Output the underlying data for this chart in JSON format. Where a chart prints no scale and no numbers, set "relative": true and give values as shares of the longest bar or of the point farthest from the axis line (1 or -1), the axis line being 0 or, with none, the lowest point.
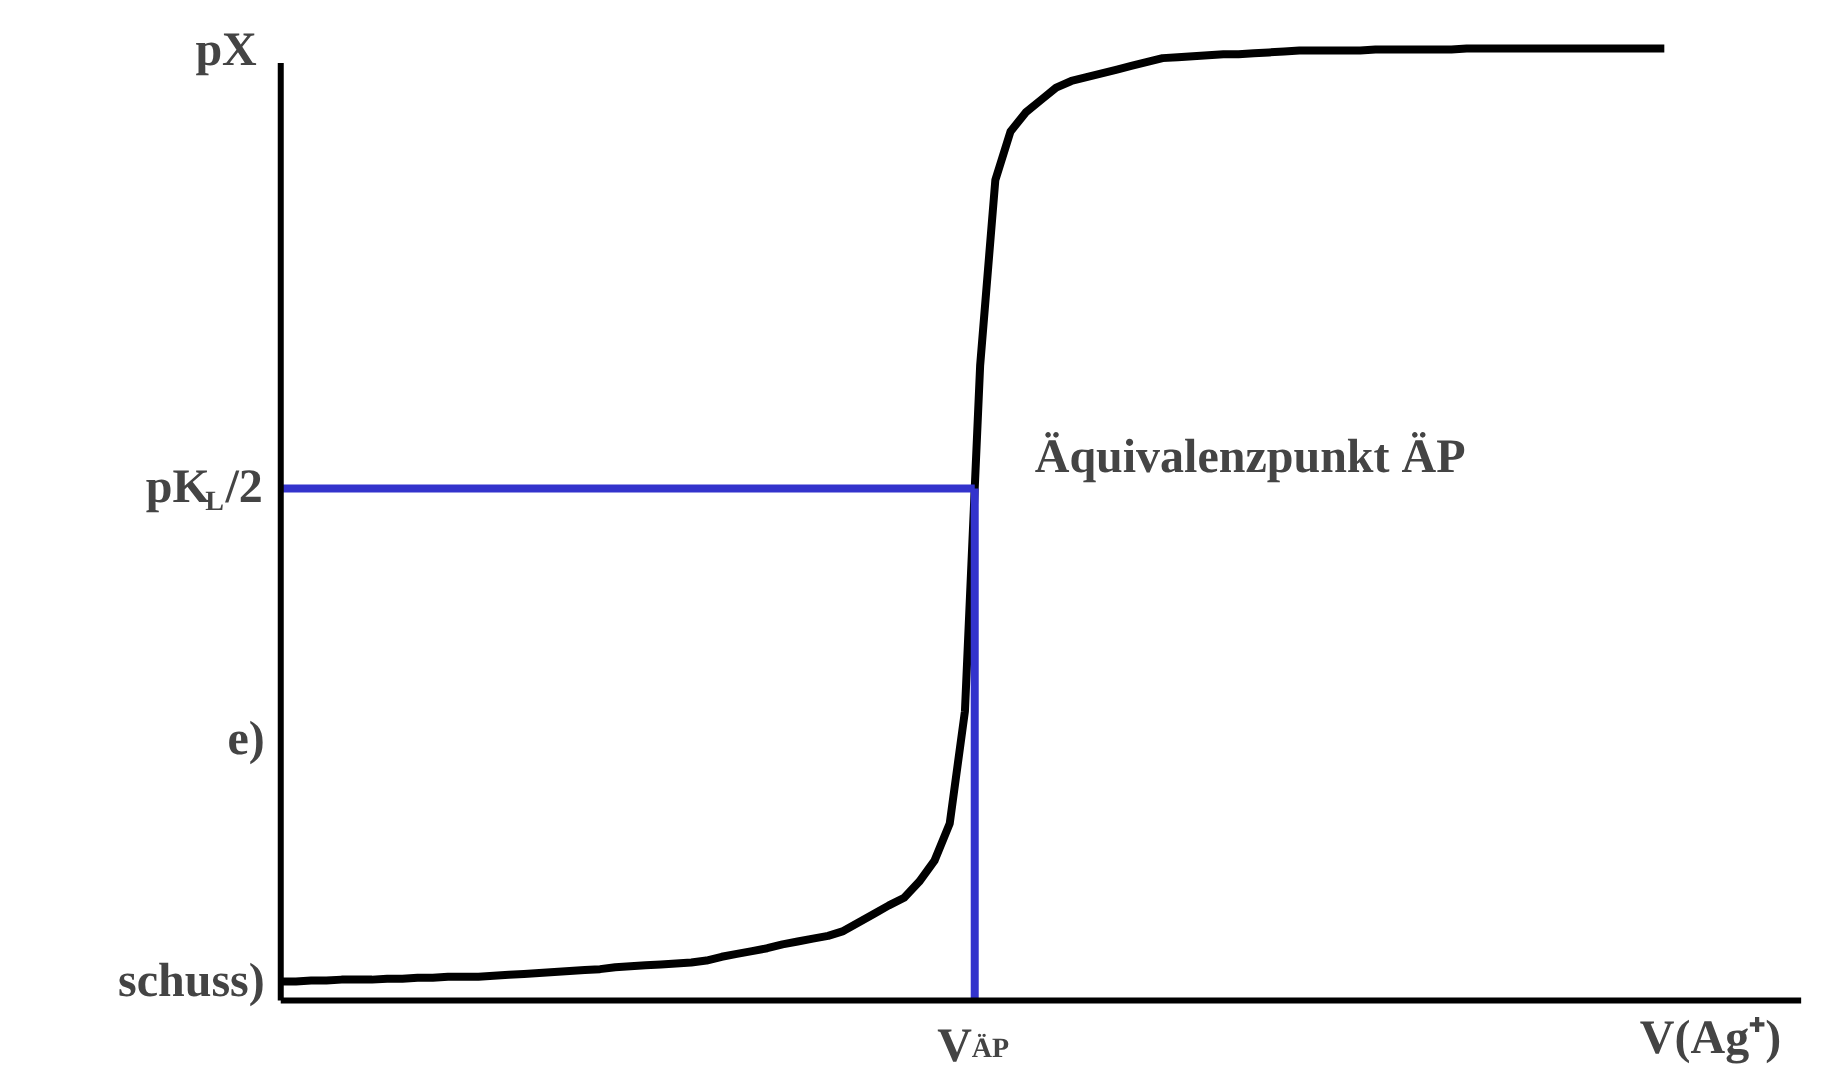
{
  "chart_data": {
    "type": "line",
    "relative": true,
    "xlabel": "V(Ag⁺)",
    "ylabel": "pX",
    "categories": [
      null,
      null,
      null,
      null,
      null,
      null,
      null,
      null,
      null,
      null,
      null,
      null,
      null,
      null,
      null,
      null,
      null,
      null,
      null,
      null,
      null,
      null,
      null,
      null,
      null,
      null,
      null,
      null,
      null,
      null,
      null,
      null,
      null,
      null,
      null,
      null,
      null,
      null,
      null,
      null,
      null,
      null,
      null,
      null,
      null,
      null,
      null,
      null,
      null,
      null,
      null,
      null,
      null,
      null,
      null,
      null,
      null,
      null,
      null,
      null,
      null,
      null,
      null,
      null,
      null,
      null,
      null,
      null,
      null,
      null,
      null,
      null,
      null,
      null,
      null,
      null,
      null,
      null,
      null,
      null,
      null,
      null,
      null,
      null,
      null,
      null,
      null,
      null,
      null,
      null,
      null,
      null
    ],
    "series": [
      {
        "color": "#000000",
        "values": [
          0.02,
          0.02,
          0.021,
          0.021,
          0.022,
          0.022,
          0.022,
          0.023,
          0.023,
          0.024,
          0.024,
          0.025,
          0.025,
          0.025,
          0.026,
          0.027,
          0.028,
          0.029,
          0.03,
          0.031,
          0.032,
          0.033,
          0.035,
          0.036,
          0.037,
          0.038,
          0.039,
          0.04,
          0.042,
          0.046,
          0.049,
          0.052,
          0.055,
          0.059,
          0.062,
          0.065,
          0.068,
          0.073,
          0.082,
          0.091,
          0.1,
          0.108,
          0.125,
          0.147,
          0.186,
          0.304,
          0.667,
          0.862,
          0.913,
          0.933,
          0.946,
          0.959,
          0.966,
          0.97,
          0.974,
          0.978,
          0.982,
          0.986,
          0.99,
          0.991,
          0.992,
          0.993,
          0.994,
          0.994,
          0.995,
          0.996,
          0.997,
          0.998,
          0.998,
          0.998,
          0.998,
          0.998,
          0.999,
          0.999,
          0.999,
          0.999,
          0.999,
          0.999,
          1,
          1,
          1,
          1,
          1,
          1,
          1,
          1,
          1,
          1,
          1,
          1,
          1,
          1
        ]
      }
    ],
    "ref_lines": [
      {
        "axis": "y",
        "value": 0.538,
        "label": "pK$_{L}$/2",
        "color": "#3333cc"
      }
    ],
    "annotations": [
      "Äquivalenzpunkt ÄP",
      "V$_{ÄP}$",
      "e)",
      "schuss)"
    ],
    "grid": false,
    "marker": "none",
    "line_style": "solid"
  }
}
